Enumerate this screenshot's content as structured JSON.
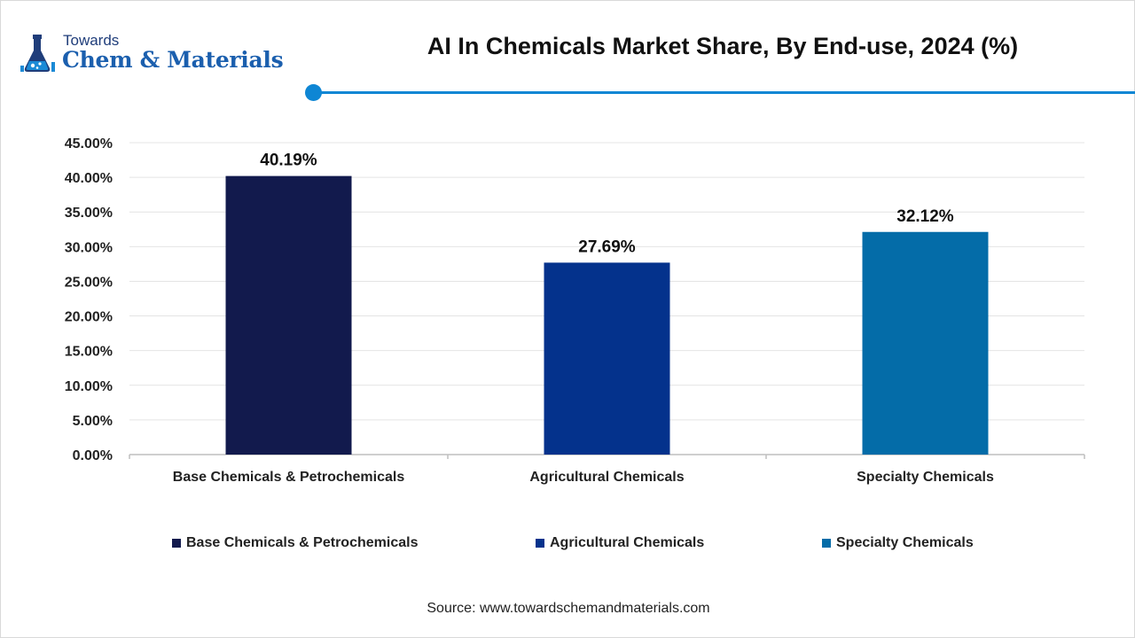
{
  "header": {
    "logo_line1": "Towards",
    "logo_line2": "Chem & Materials",
    "logo_icon": "chemistry-flask-icon",
    "title": "AI In Chemicals Market Share, By End-use, 2024 (%)",
    "accent_color": "#0e86d4"
  },
  "chart_data": {
    "type": "bar",
    "title": "AI In Chemicals Market Share, By End-use, 2024 (%)",
    "categories": [
      "Base Chemicals & Petrochemicals",
      "Agricultural Chemicals",
      "Specialty Chemicals"
    ],
    "values": [
      40.19,
      27.69,
      32.12
    ],
    "value_labels": [
      "40.19%",
      "27.69%",
      "32.12%"
    ],
    "colors": [
      "#121a4d",
      "#04328c",
      "#046ca8"
    ],
    "y_ticks": [
      "0.00%",
      "5.00%",
      "10.00%",
      "15.00%",
      "20.00%",
      "25.00%",
      "30.00%",
      "35.00%",
      "40.00%",
      "45.00%"
    ],
    "ylim": [
      0,
      45
    ],
    "grid": true,
    "legend_position": "bottom",
    "xlabel": "",
    "ylabel": ""
  },
  "legend": {
    "items": [
      {
        "label": "Base Chemicals & Petrochemicals",
        "color": "#121a4d"
      },
      {
        "label": "Agricultural Chemicals",
        "color": "#04328c"
      },
      {
        "label": "Specialty Chemicals",
        "color": "#046ca8"
      }
    ]
  },
  "footer": {
    "source": "Source: www.towardschemandmaterials.com"
  }
}
